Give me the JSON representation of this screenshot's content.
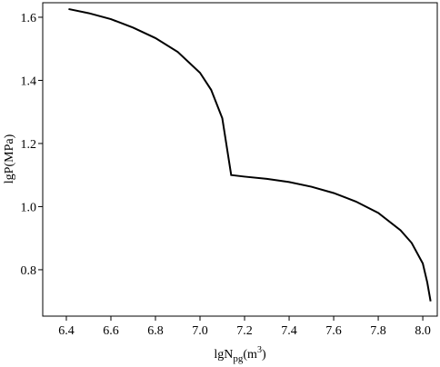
{
  "chart_data": {
    "type": "line",
    "x_label": [
      "lgN",
      "pg",
      "(m",
      "3",
      ")"
    ],
    "y_label": "lgP(MPa)",
    "x": [
      6.41,
      6.5,
      6.6,
      6.7,
      6.8,
      6.9,
      7.0,
      7.05,
      7.1,
      7.14,
      7.2,
      7.3,
      7.4,
      7.5,
      7.6,
      7.7,
      7.8,
      7.9,
      7.95,
      8.0,
      8.02,
      8.035
    ],
    "series": [
      {
        "color": "#000000",
        "values": [
          1.626,
          1.613,
          1.594,
          1.567,
          1.534,
          1.49,
          1.424,
          1.37,
          1.28,
          1.1,
          1.095,
          1.088,
          1.078,
          1.063,
          1.043,
          1.016,
          0.98,
          0.925,
          0.885,
          0.82,
          0.76,
          0.7
        ]
      }
    ],
    "xlim": [
      6.294,
      8.065
    ],
    "ylim": [
      0.653,
      1.646
    ],
    "xticks": [
      6.4,
      6.6,
      6.8,
      {
        "value": 7.0,
        "label": "7.0"
      },
      7.2,
      7.4,
      7.6,
      7.8,
      {
        "value": 8.0,
        "label": "8.0"
      }
    ],
    "yticks": [
      {
        "value": 0.8,
        "label": "0.8"
      },
      {
        "value": 1.0,
        "label": "1.0"
      },
      1.2,
      1.4,
      1.6
    ]
  }
}
